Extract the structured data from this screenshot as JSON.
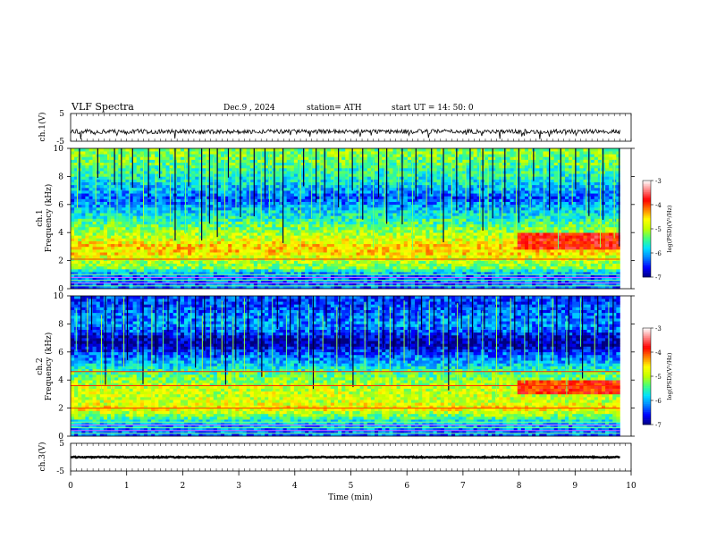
{
  "header": {
    "title": "VLF  Spectra",
    "date": "Dec.9  , 2024",
    "station": "station= ATH",
    "start_ut": "start  UT  =    14: 50: 0"
  },
  "axes": {
    "ch1_waveform_label": "ch.1(V)",
    "ch1_waveform_ticks": [
      "5",
      "-5"
    ],
    "ch1_spec_label_line1": "ch.1",
    "ch1_spec_label_line2": "Frequency  (kHz)",
    "ch2_spec_label_line1": "ch.2",
    "ch2_spec_label_line2": "Frequency  (kHz)",
    "freq_ticks": [
      "0",
      "2",
      "4",
      "6",
      "8",
      "10"
    ],
    "ch3_label": "ch.3(V)",
    "ch3_ticks": [
      "5",
      "-5"
    ],
    "time_label": "Time  (min)",
    "time_ticks": [
      "0",
      "1",
      "2",
      "3",
      "4",
      "5",
      "6",
      "7",
      "8",
      "9",
      "10"
    ],
    "colorbar_ticks": [
      "-3",
      "-4",
      "-5",
      "-6",
      "-7"
    ],
    "colorbar_label": "log(PSD)(V²/Hz)"
  },
  "colors": {
    "colormap": [
      "#000080",
      "#0000ff",
      "#0080ff",
      "#00e0ff",
      "#40ff80",
      "#c0ff00",
      "#ffff00",
      "#ff8000",
      "#ff0000",
      "#ff8080",
      "#ffffff"
    ]
  },
  "chart_data": [
    {
      "type": "line",
      "title": "VLF  Spectra",
      "ylabel": "ch.1(V)",
      "xlabel": "Time  (min)",
      "xlim": [
        0,
        10
      ],
      "ylim": [
        -5,
        5
      ],
      "x_data_end": 9.8,
      "series": [
        {
          "approx_level_v": -1.5,
          "noise_amplitude_v": 0.8
        }
      ]
    },
    {
      "type": "heatmap",
      "ylabel": "Frequency  (kHz)",
      "xlabel": "Time  (min)",
      "xlim": [
        0,
        10
      ],
      "ylim": [
        0,
        10
      ],
      "x_data_end": 9.8,
      "colorbar": {
        "label": "log(PSD)(V²/Hz)",
        "range": [
          -7,
          -3
        ]
      },
      "profile_freq_khz": [
        0.0,
        0.5,
        1.0,
        1.5,
        2.0,
        2.5,
        3.0,
        3.5,
        4.0,
        4.5,
        5.0,
        5.5,
        6.0,
        6.5,
        7.0,
        7.5,
        8.0,
        8.5,
        9.0,
        9.5,
        10.0
      ],
      "profile_log_psd": [
        -6.3,
        -6.3,
        -6.2,
        -5.2,
        -5.0,
        -4.6,
        -4.5,
        -4.8,
        -5.1,
        -5.3,
        -5.6,
        -5.8,
        -6.1,
        -6.3,
        -6.0,
        -5.8,
        -5.6,
        -5.5,
        -5.3,
        -5.2,
        -5.2
      ],
      "late_enhancement": {
        "t_start_min": 8.0,
        "freq_range_khz": [
          2.8,
          4.0
        ],
        "log_psd": -3.8
      },
      "horizontal_lines_khz": [
        0.2,
        0.4,
        0.6,
        0.8,
        1.0,
        2.1
      ],
      "spikes_t_min": [
        0.12,
        0.45,
        0.7,
        0.83,
        1.05,
        1.3,
        1.52,
        1.78,
        2.05,
        2.3,
        2.42,
        2.55,
        2.75,
        2.95,
        3.2,
        3.4,
        3.55,
        3.75,
        4.1,
        4.3,
        4.45,
        4.7,
        4.95,
        5.15,
        5.4,
        5.6,
        5.85,
        6.1,
        6.35,
        6.6,
        6.8,
        7.05,
        7.3,
        7.45,
        7.7,
        7.95,
        8.2,
        8.45,
        8.7,
        8.95,
        9.2,
        9.45,
        9.7
      ]
    },
    {
      "type": "heatmap",
      "ylabel": "Frequency  (kHz)",
      "xlabel": "Time  (min)",
      "xlim": [
        0,
        10
      ],
      "ylim": [
        0,
        10
      ],
      "x_data_end": 9.8,
      "colorbar": {
        "label": "log(PSD)(V²/Hz)",
        "range": [
          -7,
          -3
        ]
      },
      "profile_freq_khz": [
        0.0,
        0.5,
        1.0,
        1.5,
        2.0,
        2.5,
        3.0,
        3.5,
        4.0,
        4.5,
        5.0,
        5.5,
        6.0,
        6.5,
        7.0,
        7.5,
        8.0,
        8.5,
        9.0,
        9.5,
        10.0
      ],
      "profile_log_psd": [
        -6.3,
        -6.2,
        -5.8,
        -5.2,
        -4.6,
        -4.9,
        -4.9,
        -4.9,
        -5.2,
        -5.4,
        -5.8,
        -6.1,
        -6.4,
        -6.9,
        -6.8,
        -6.3,
        -6.1,
        -6.2,
        -6.3,
        -6.4,
        -6.4
      ],
      "late_enhancement": {
        "t_start_min": 8.0,
        "freq_range_khz": [
          3.0,
          4.0
        ],
        "log_psd": -3.9
      },
      "horizontal_lines_khz": [
        0.2,
        0.4,
        0.6,
        0.8,
        1.0,
        2.0,
        3.6,
        4.6
      ],
      "spikes_t_min": [
        0.1,
        0.3,
        0.55,
        0.75,
        0.95,
        1.2,
        1.45,
        1.65,
        1.9,
        2.15,
        2.35,
        2.5,
        2.7,
        2.9,
        3.1,
        3.35,
        3.6,
        3.85,
        4.05,
        4.25,
        4.5,
        4.75,
        5.0,
        5.25,
        5.5,
        5.7,
        5.95,
        6.2,
        6.4,
        6.65,
        6.9,
        7.1,
        7.35,
        7.6,
        7.85,
        8.1,
        8.35,
        8.6,
        8.85,
        9.1,
        9.35,
        9.6
      ]
    },
    {
      "type": "line",
      "ylabel": "ch.3(V)",
      "xlabel": "Time  (min)",
      "xlim": [
        0,
        10
      ],
      "ylim": [
        -5,
        5
      ],
      "x_data_end": 9.8,
      "series": [
        {
          "approx_level_v": 0.0,
          "noise_amplitude_v": 0.2
        }
      ]
    }
  ]
}
